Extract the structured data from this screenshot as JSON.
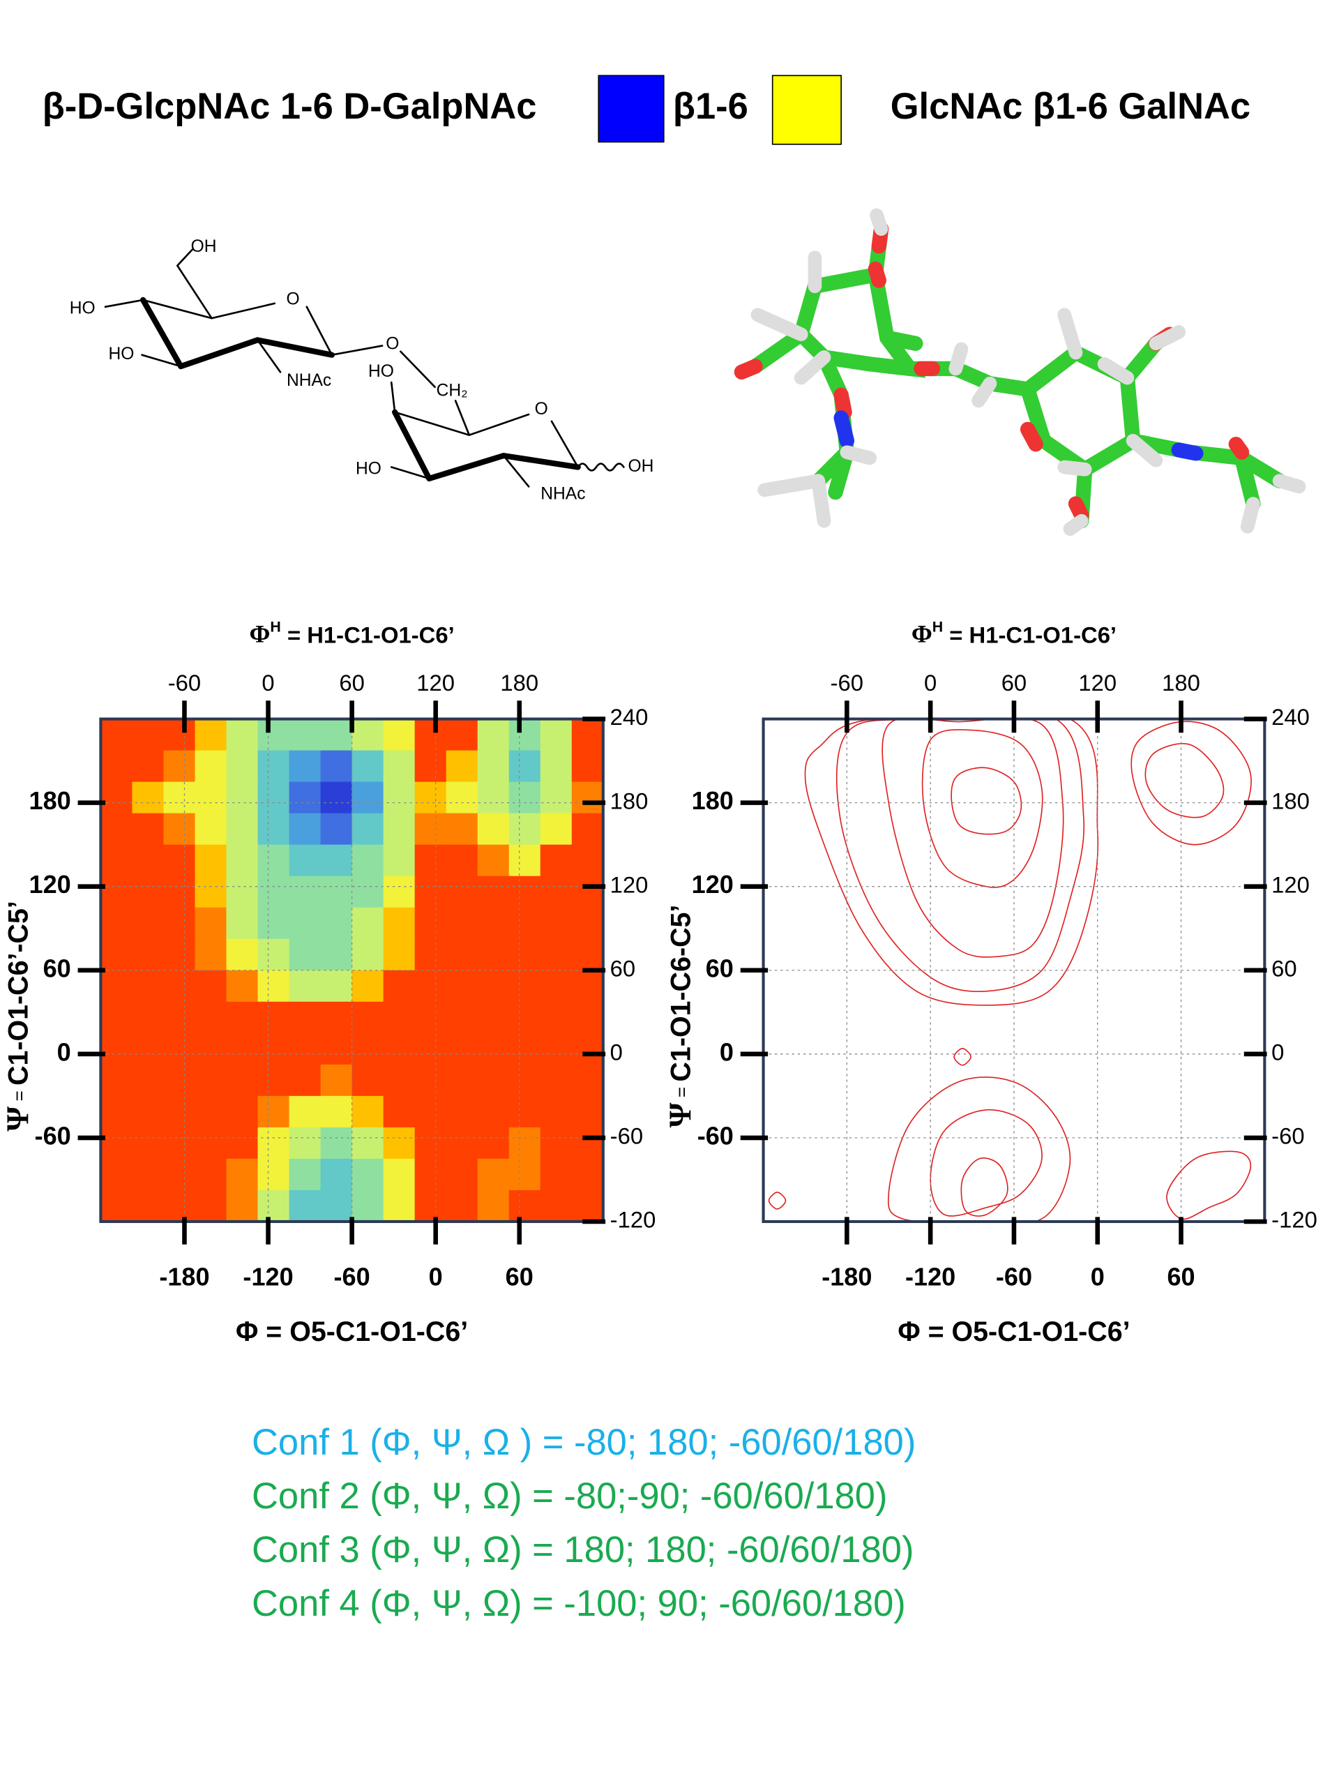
{
  "header": {
    "left": "β-D-GlcpNAc 1-6 D-GalpNAc",
    "middle": "β1-6",
    "right": "GlcNAc β1-6 GalNAc",
    "colors": [
      "#0000ff",
      "#ffff00"
    ]
  },
  "structure": {
    "labels": [
      "OH",
      "HO",
      "HO",
      "O",
      "NHAc",
      "O",
      "HO",
      "CH₂",
      "O",
      "HO",
      "NHAc",
      "OH"
    ]
  },
  "chart_data": [
    {
      "type": "heatmap",
      "x_label": "Φ = O5-C1-O1-C6’",
      "x2_label": [
        "Φ",
        "H",
        " = H1-C1-O1-C6’"
      ],
      "y_label": [
        "Ψ",
        " = ",
        "C1-O1-C6’-C5’"
      ],
      "xlim": [
        -240,
        120
      ],
      "xticks": [
        -180,
        -120,
        -60,
        0,
        60
      ],
      "x2lim": [
        -120,
        240
      ],
      "x2ticks": [
        -60,
        0,
        60,
        120,
        180
      ],
      "ylim": [
        -120,
        240
      ],
      "yticks": [
        -60,
        0,
        60,
        120,
        180
      ],
      "y2lim": [
        -120,
        240
      ],
      "y2ticks": [
        -120,
        -60,
        0,
        60,
        120,
        180,
        240
      ],
      "grid": true,
      "colors": [
        "#2a3fd8",
        "#3f6fe0",
        "#4aa0dc",
        "#62c8c8",
        "#8fe0a0",
        "#c8f070",
        "#f2f23a",
        "#ffc000",
        "#ff8000",
        "#ff4000"
      ],
      "z": [
        [
          9,
          9,
          9,
          7,
          5,
          4,
          4,
          4,
          5,
          6,
          9,
          9,
          5,
          4,
          5,
          9
        ],
        [
          9,
          9,
          8,
          6,
          5,
          3,
          2,
          1,
          3,
          5,
          9,
          7,
          5,
          3,
          5,
          9
        ],
        [
          9,
          7,
          6,
          6,
          5,
          3,
          1,
          0,
          2,
          5,
          7,
          6,
          5,
          4,
          5,
          8
        ],
        [
          9,
          9,
          8,
          6,
          5,
          3,
          2,
          1,
          3,
          5,
          8,
          8,
          6,
          5,
          6,
          9
        ],
        [
          9,
          9,
          9,
          7,
          5,
          4,
          3,
          3,
          4,
          5,
          9,
          9,
          8,
          6,
          9,
          9
        ],
        [
          9,
          9,
          9,
          7,
          5,
          4,
          4,
          4,
          4,
          6,
          9,
          9,
          9,
          9,
          9,
          9
        ],
        [
          9,
          9,
          9,
          8,
          5,
          4,
          4,
          4,
          5,
          7,
          9,
          9,
          9,
          9,
          9,
          9
        ],
        [
          9,
          9,
          9,
          8,
          6,
          5,
          4,
          4,
          5,
          7,
          9,
          9,
          9,
          9,
          9,
          9
        ],
        [
          9,
          9,
          9,
          9,
          8,
          6,
          5,
          5,
          7,
          9,
          9,
          9,
          9,
          9,
          9,
          9
        ],
        [
          9,
          9,
          9,
          9,
          9,
          9,
          9,
          9,
          9,
          9,
          9,
          9,
          9,
          9,
          9,
          9
        ],
        [
          9,
          9,
          9,
          9,
          9,
          9,
          9,
          9,
          9,
          9,
          9,
          9,
          9,
          9,
          9,
          9
        ],
        [
          9,
          9,
          9,
          9,
          9,
          9,
          9,
          8,
          9,
          9,
          9,
          9,
          9,
          9,
          9,
          9
        ],
        [
          9,
          9,
          9,
          9,
          9,
          8,
          6,
          6,
          7,
          9,
          9,
          9,
          9,
          9,
          9,
          9
        ],
        [
          9,
          9,
          9,
          9,
          9,
          6,
          5,
          4,
          5,
          7,
          9,
          9,
          9,
          8,
          9,
          9
        ],
        [
          9,
          9,
          9,
          9,
          8,
          6,
          4,
          3,
          4,
          6,
          9,
          9,
          8,
          8,
          9,
          9
        ],
        [
          9,
          9,
          9,
          9,
          8,
          5,
          3,
          3,
          4,
          6,
          9,
          9,
          8,
          9,
          9,
          9
        ]
      ]
    },
    {
      "type": "contour",
      "x_label": "Φ = O5-C1-O1-C6’",
      "x2_label": [
        "Φ",
        "H",
        " = H1-C1-O1-C6’"
      ],
      "y_label": [
        "Ψ",
        " = ",
        "C1-O1-C6-C5’"
      ],
      "xlim": [
        -240,
        120
      ],
      "xticks": [
        -180,
        -120,
        -60,
        0,
        60
      ],
      "x2lim": [
        -120,
        240
      ],
      "x2ticks": [
        -60,
        0,
        60,
        120,
        180
      ],
      "ylim": [
        -120,
        240
      ],
      "yticks": [
        -60,
        0,
        60,
        120,
        180
      ],
      "y2lim": [
        -120,
        240
      ],
      "y2ticks": [
        -120,
        -60,
        0,
        60,
        120,
        180,
        240
      ],
      "grid": true,
      "color": "#e02020",
      "contours": [
        {
          "x": [
            -100,
            -80,
            -60,
            -55,
            -65,
            -85,
            -100,
            -105
          ],
          "y": [
            200,
            205,
            195,
            175,
            160,
            158,
            165,
            185
          ]
        },
        {
          "x": [
            -120,
            -90,
            -55,
            -40,
            -45,
            -60,
            -80,
            -110,
            -125
          ],
          "y": [
            225,
            232,
            222,
            190,
            150,
            125,
            120,
            135,
            180
          ]
        },
        {
          "x": [
            -150,
            -100,
            -40,
            -25,
            -30,
            -45,
            -70,
            -100,
            -130,
            -150
          ],
          "y": [
            236,
            238,
            236,
            180,
            120,
            80,
            70,
            75,
            110,
            180
          ]
        },
        {
          "x": [
            -180,
            -130,
            -30,
            -10,
            -20,
            -40,
            -80,
            -120,
            -160,
            -185
          ],
          "y": [
            230,
            240,
            240,
            170,
            110,
            60,
            45,
            55,
            100,
            170
          ]
        },
        {
          "x": [
            -200,
            -160,
            -20,
            0,
            -10,
            -35,
            -80,
            -130,
            -170,
            -200,
            -210
          ],
          "y": [
            220,
            240,
            240,
            160,
            90,
            45,
            35,
            45,
            90,
            160,
            200
          ]
        },
        {
          "x": [
            30,
            60,
            90,
            110,
            100,
            70,
            40,
            25
          ],
          "y": [
            225,
            238,
            230,
            200,
            165,
            150,
            165,
            200
          ]
        },
        {
          "x": [
            40,
            65,
            85,
            90,
            75,
            50,
            35
          ],
          "y": [
            215,
            222,
            205,
            185,
            170,
            175,
            195
          ]
        },
        {
          "x": [
            -110,
            -80,
            -55,
            -40,
            -50,
            -80,
            -110,
            -120
          ],
          "y": [
            -115,
            -110,
            -100,
            -75,
            -50,
            -40,
            -55,
            -90
          ]
        },
        {
          "x": [
            -140,
            -90,
            -40,
            -20,
            -30,
            -60,
            -100,
            -135,
            -150
          ],
          "y": [
            -118,
            -120,
            -118,
            -80,
            -45,
            -20,
            -20,
            -50,
            -100
          ]
        },
        {
          "x": [
            -95,
            -80,
            -65,
            -70,
            -85,
            -97
          ],
          "y": [
            -112,
            -115,
            -100,
            -80,
            -75,
            -90
          ]
        },
        {
          "x": [
            60,
            80,
            100,
            110,
            100,
            70,
            50
          ],
          "y": [
            -118,
            -110,
            -100,
            -80,
            -70,
            -75,
            -100
          ]
        },
        {
          "x": [
            -236,
            -230,
            -224,
            -230
          ],
          "y": [
            -105,
            -99,
            -105,
            -111
          ]
        },
        {
          "x": [
            -103,
            -97,
            -91,
            -97
          ],
          "y": [
            -2,
            4,
            -2,
            -8
          ]
        }
      ]
    }
  ],
  "conformations": [
    {
      "text": "Conf 1 (Φ, Ψ, Ω ) = -80; 180; -60/60/180)",
      "color": "#1ab0e8"
    },
    {
      "text": "Conf 2 (Φ, Ψ, Ω) =  -80;-90;  -60/60/180)",
      "color": "#1aaa50"
    },
    {
      "text": "Conf 3 (Φ, Ψ, Ω) =  180; 180;  -60/60/180)",
      "color": "#1aaa50"
    },
    {
      "text": "Conf 4 (Φ, Ψ, Ω) =  -100; 90;   -60/60/180)",
      "color": "#1aaa50"
    }
  ]
}
